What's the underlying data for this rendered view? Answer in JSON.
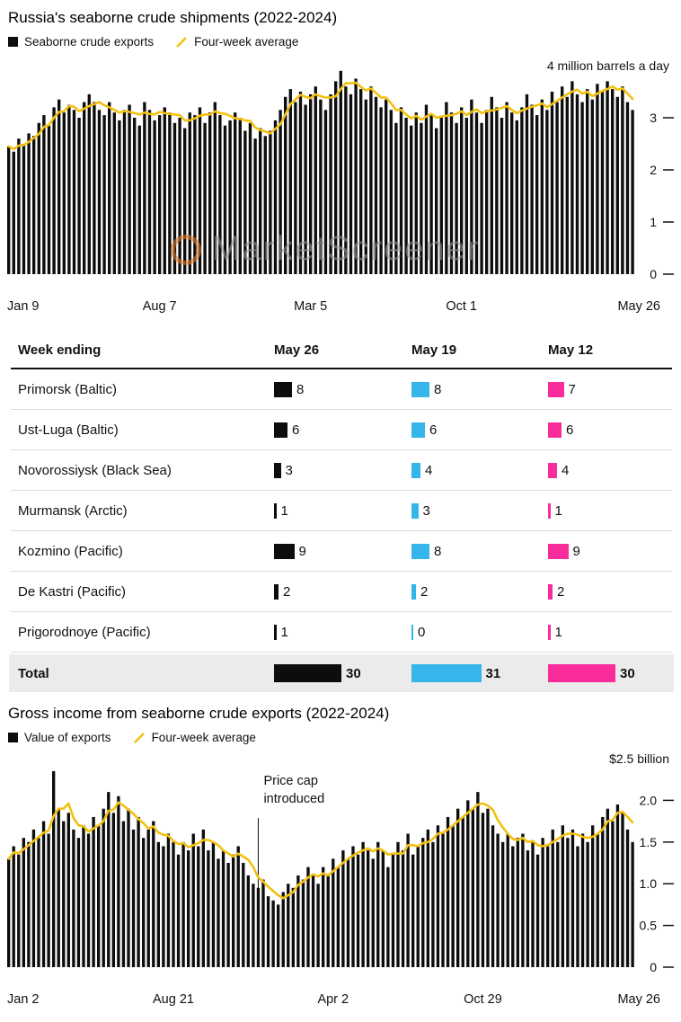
{
  "colors": {
    "bar": "#0d0d0d",
    "line": "#f3c111",
    "table_black": "#0d0d0d",
    "table_cyan": "#35b5e9",
    "table_magenta": "#f92c9c",
    "total_row_bg": "#ebebeb"
  },
  "watermark": "MarketScreener",
  "chart_data": [
    {
      "type": "bar",
      "title": "Russia's seaborne crude shipments (2022-2024)",
      "legend": [
        "Seaborne crude exports",
        "Four-week average"
      ],
      "unit_label": "4 million barrels a day",
      "ylabel": "million barrels a day",
      "ymax": 4,
      "ylim": [
        0,
        4
      ],
      "grid": false,
      "average_line": "four-week trailing mean computed from values",
      "yticks": [
        {
          "label": "3",
          "value": 3
        },
        {
          "label": "2",
          "value": 2
        },
        {
          "label": "1",
          "value": 1
        },
        {
          "label": "0",
          "value": 0
        }
      ],
      "xticks": [
        {
          "label": "Jan 9",
          "index": 0
        },
        {
          "label": "Aug 7",
          "index": 30
        },
        {
          "label": "Mar 5",
          "index": 60
        },
        {
          "label": "Oct 1",
          "index": 90
        },
        {
          "label": "May 26",
          "index": 124
        }
      ],
      "values": [
        2.45,
        2.35,
        2.6,
        2.5,
        2.7,
        2.65,
        2.9,
        3.05,
        2.85,
        3.2,
        3.35,
        3.1,
        3.25,
        3.15,
        3.0,
        3.3,
        3.45,
        3.3,
        3.15,
        3.05,
        3.3,
        3.1,
        2.95,
        3.15,
        3.25,
        3.0,
        2.85,
        3.3,
        3.15,
        2.95,
        3.05,
        3.2,
        3.1,
        2.9,
        3.0,
        2.8,
        3.1,
        3.05,
        3.2,
        2.9,
        3.1,
        3.3,
        3.05,
        2.85,
        2.95,
        3.1,
        3.0,
        2.75,
        2.9,
        2.6,
        2.8,
        2.65,
        2.75,
        2.95,
        3.15,
        3.4,
        3.55,
        3.3,
        3.5,
        3.25,
        3.45,
        3.6,
        3.35,
        3.15,
        3.45,
        3.7,
        3.9,
        3.6,
        3.45,
        3.75,
        3.55,
        3.35,
        3.6,
        3.4,
        3.2,
        3.35,
        3.15,
        2.9,
        3.2,
        3.0,
        2.85,
        3.1,
        2.9,
        3.25,
        3.05,
        2.8,
        3.0,
        3.3,
        3.1,
        2.9,
        3.2,
        3.0,
        3.35,
        3.1,
        2.9,
        3.15,
        3.4,
        3.2,
        3.0,
        3.3,
        3.1,
        2.95,
        3.2,
        3.45,
        3.25,
        3.05,
        3.35,
        3.15,
        3.5,
        3.3,
        3.6,
        3.4,
        3.7,
        3.45,
        3.3,
        3.55,
        3.35,
        3.65,
        3.5,
        3.7,
        3.55,
        3.4,
        3.6,
        3.3,
        3.15
      ]
    },
    {
      "type": "table",
      "header": [
        "Week ending",
        "May 26",
        "May 19",
        "May 12"
      ],
      "column_colors": [
        "#0d0d0d",
        "#35b5e9",
        "#f92c9c"
      ],
      "rows": [
        {
          "label": "Primorsk (Baltic)",
          "values": [
            8,
            8,
            7
          ]
        },
        {
          "label": "Ust-Luga (Baltic)",
          "values": [
            6,
            6,
            6
          ]
        },
        {
          "label": "Novorossiysk (Black Sea)",
          "values": [
            3,
            4,
            4
          ]
        },
        {
          "label": "Murmansk (Arctic)",
          "values": [
            1,
            3,
            1
          ]
        },
        {
          "label": "Kozmino (Pacific)",
          "values": [
            9,
            8,
            9
          ]
        },
        {
          "label": "De Kastri (Pacific)",
          "values": [
            2,
            2,
            2
          ]
        },
        {
          "label": "Prigorodnoye (Pacific)",
          "values": [
            1,
            0,
            1
          ]
        }
      ],
      "total": {
        "label": "Total",
        "values": [
          30,
          31,
          30
        ]
      }
    },
    {
      "type": "bar",
      "title": "Gross income from seaborne crude exports (2022-2024)",
      "legend": [
        "Value of exports",
        "Four-week average"
      ],
      "unit_label": "$2.5 billion",
      "ylabel": "$ billion",
      "ymax": 2.5,
      "ylim": [
        0,
        2.5
      ],
      "grid": false,
      "average_line": "four-week trailing mean computed from values",
      "annotation": {
        "lines": [
          "Price cap",
          "introduced"
        ],
        "index": 50
      },
      "yticks": [
        {
          "label": "2.0",
          "value": 2.0
        },
        {
          "label": "1.5",
          "value": 1.5
        },
        {
          "label": "1.0",
          "value": 1.0
        },
        {
          "label": "0.5",
          "value": 0.5
        },
        {
          "label": "0",
          "value": 0
        }
      ],
      "xticks": [
        {
          "label": "Jan 2",
          "index": 0
        },
        {
          "label": "Aug 21",
          "index": 33
        },
        {
          "label": "Apr 2",
          "index": 65
        },
        {
          "label": "Oct 29",
          "index": 95
        },
        {
          "label": "May 26",
          "index": 125
        }
      ],
      "values": [
        1.3,
        1.45,
        1.35,
        1.55,
        1.5,
        1.65,
        1.55,
        1.75,
        1.6,
        2.35,
        1.9,
        1.75,
        1.85,
        1.65,
        1.55,
        1.7,
        1.6,
        1.8,
        1.7,
        1.9,
        2.1,
        1.85,
        2.05,
        1.75,
        1.9,
        1.65,
        1.8,
        1.55,
        1.65,
        1.75,
        1.5,
        1.45,
        1.6,
        1.5,
        1.35,
        1.5,
        1.4,
        1.6,
        1.45,
        1.65,
        1.4,
        1.5,
        1.3,
        1.4,
        1.25,
        1.35,
        1.45,
        1.25,
        1.1,
        1.0,
        0.95,
        1.05,
        0.85,
        0.8,
        0.75,
        0.9,
        1.0,
        0.95,
        1.1,
        1.05,
        1.2,
        1.1,
        1.0,
        1.2,
        1.1,
        1.3,
        1.2,
        1.4,
        1.3,
        1.45,
        1.35,
        1.5,
        1.4,
        1.3,
        1.5,
        1.4,
        1.2,
        1.35,
        1.5,
        1.4,
        1.6,
        1.35,
        1.45,
        1.55,
        1.65,
        1.5,
        1.7,
        1.6,
        1.8,
        1.7,
        1.9,
        1.8,
        2.0,
        1.9,
        2.1,
        1.85,
        1.9,
        1.7,
        1.6,
        1.5,
        1.6,
        1.45,
        1.55,
        1.6,
        1.4,
        1.5,
        1.35,
        1.55,
        1.45,
        1.65,
        1.5,
        1.7,
        1.55,
        1.65,
        1.45,
        1.6,
        1.5,
        1.7,
        1.6,
        1.8,
        1.9,
        1.75,
        1.95,
        1.85,
        1.65,
        1.5
      ]
    }
  ]
}
